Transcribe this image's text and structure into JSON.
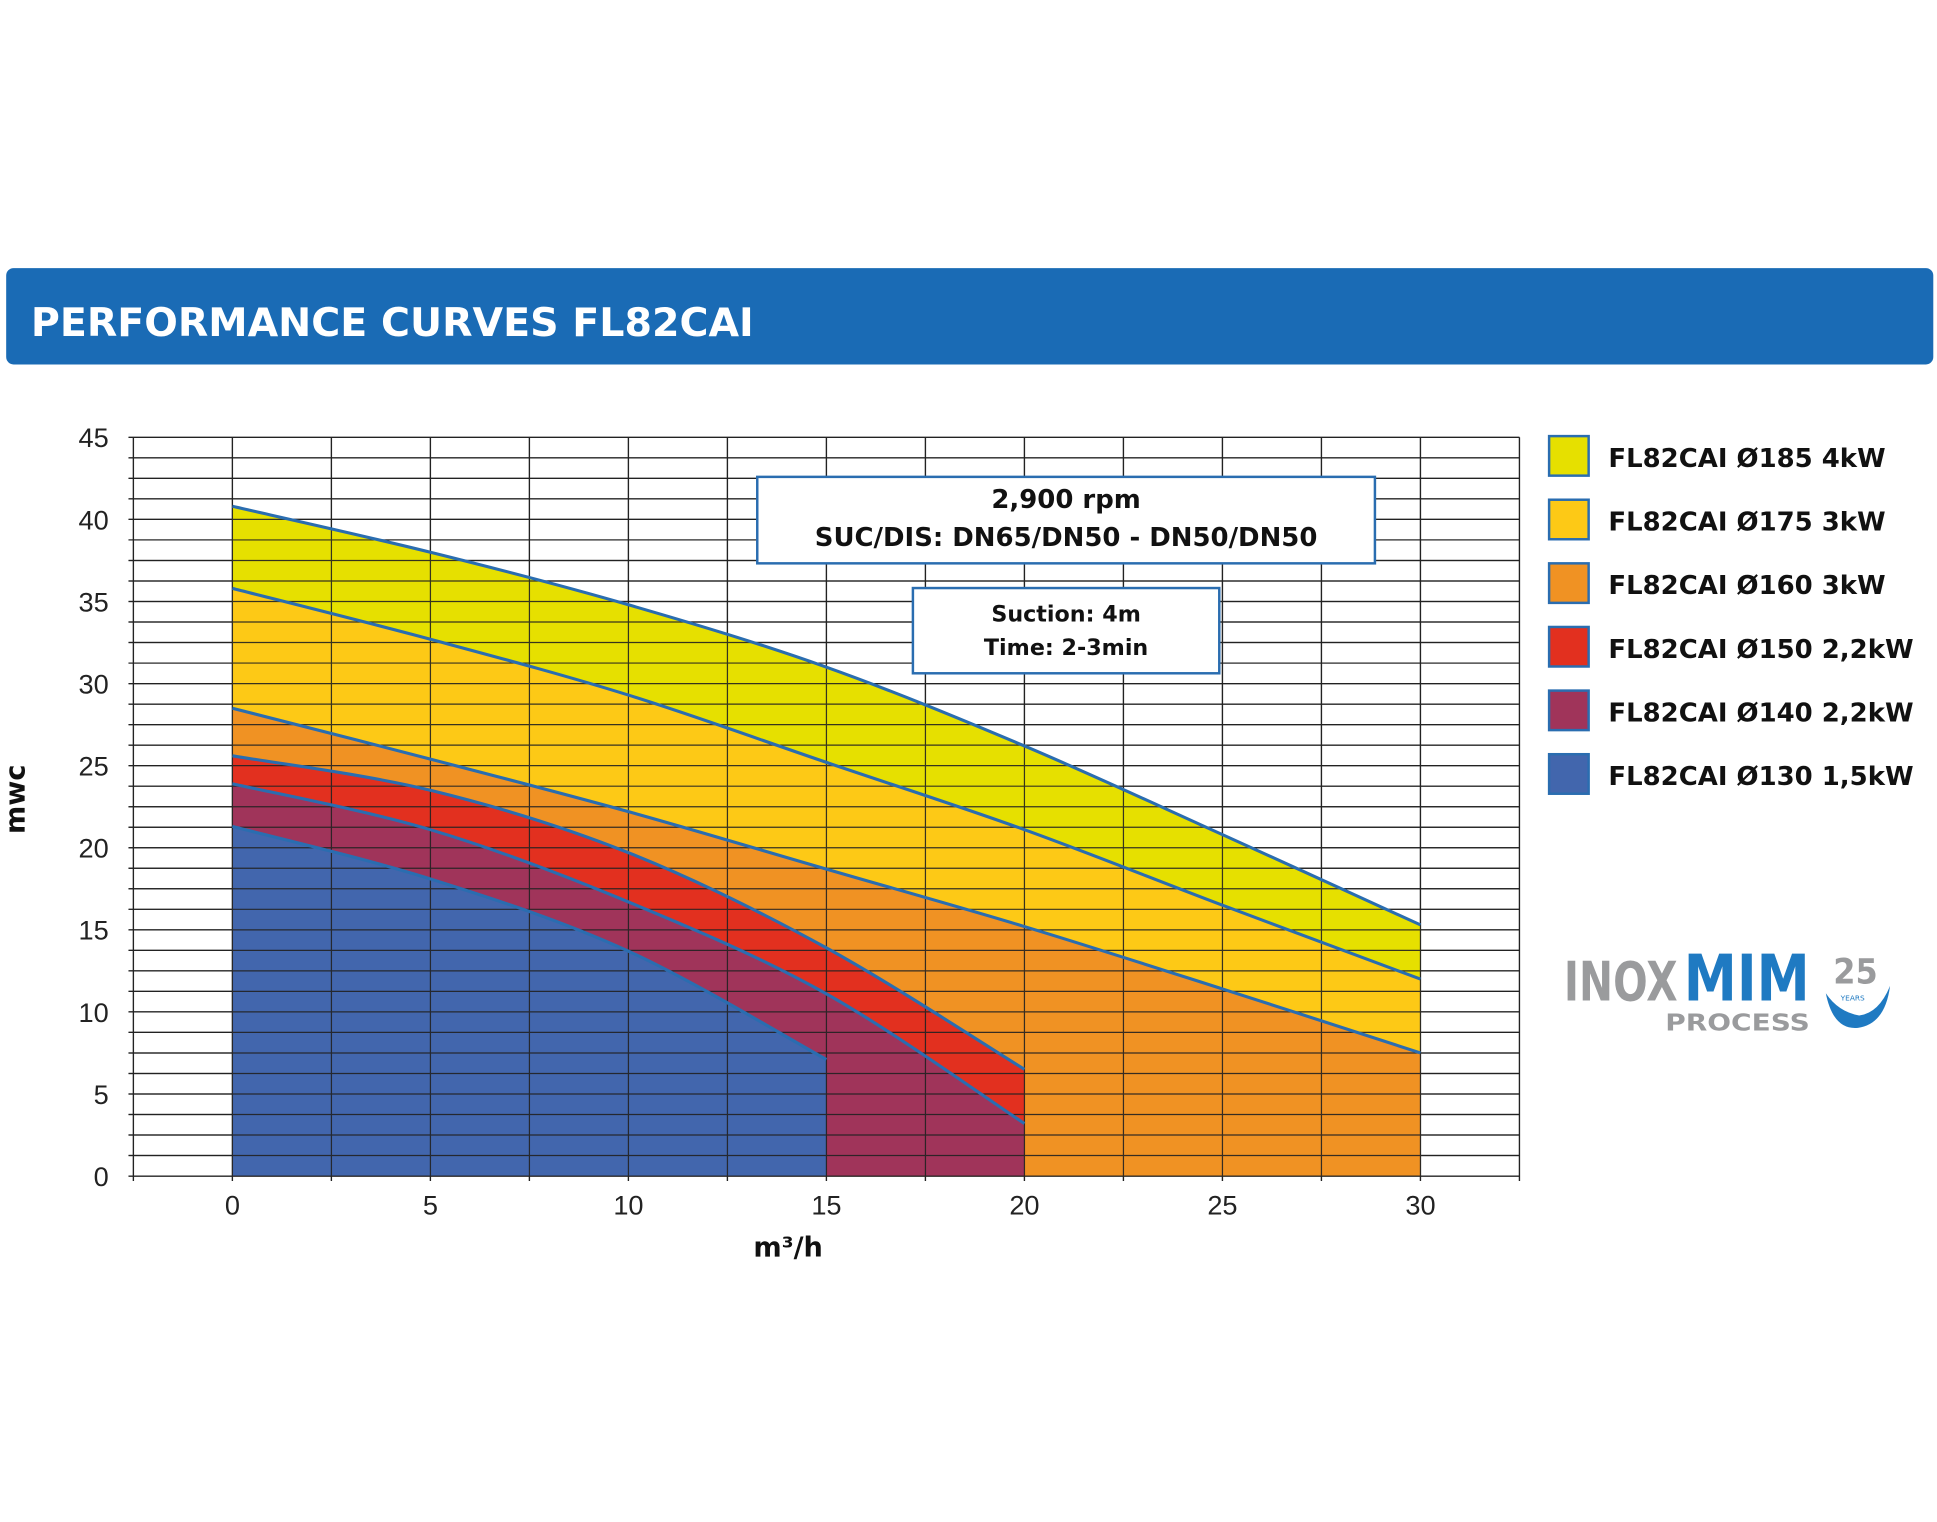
{
  "header": {
    "title": "PERFORMANCE CURVES FL82CAI",
    "color": "#1a6bb5"
  },
  "annotations": {
    "speed": "2,900 rpm",
    "connections": "SUC/DIS: DN65/DN50 - DN50/DN50",
    "suction": "Suction: 4m",
    "time": "Time: 2-3min"
  },
  "logo": {
    "brand_gray": "INOX",
    "brand_blue": "MIM",
    "sub": "PROCESS",
    "anniversary": "25",
    "years": "YEARS"
  },
  "chart_data": {
    "type": "area",
    "title": "PERFORMANCE CURVES FL82CAI",
    "xlabel": "m³/h",
    "ylabel": "mwc",
    "xlim": [
      -2.5,
      32.5
    ],
    "ylim": [
      0,
      45
    ],
    "xticks": [
      0,
      5,
      10,
      15,
      20,
      25,
      30
    ],
    "yticks": [
      0,
      5,
      10,
      15,
      20,
      25,
      30,
      35,
      40,
      45
    ],
    "grid": true,
    "legend_position": "right",
    "series": [
      {
        "name": "FL82CAI Ø185 4kW",
        "color": "#e6e000",
        "x": [
          0,
          5,
          10,
          15,
          20,
          25,
          30
        ],
        "y": [
          40.8,
          38.0,
          34.8,
          31.0,
          26.2,
          20.8,
          15.3
        ]
      },
      {
        "name": "FL82CAI Ø175 3kW",
        "color": "#fdc916",
        "x": [
          0,
          5,
          10,
          15,
          20,
          25,
          30
        ],
        "y": [
          35.8,
          32.7,
          29.3,
          25.2,
          21.1,
          16.5,
          12.0
        ]
      },
      {
        "name": "FL82CAI Ø160 3kW",
        "color": "#f09223",
        "x": [
          0,
          5,
          10,
          15,
          20,
          25,
          30
        ],
        "y": [
          28.5,
          25.4,
          22.2,
          18.7,
          15.2,
          11.4,
          7.5
        ]
      },
      {
        "name": "FL82CAI Ø150 2,2kW",
        "color": "#e2301f",
        "x": [
          0,
          5,
          10,
          15,
          20
        ],
        "y": [
          25.6,
          23.5,
          19.7,
          13.9,
          6.5
        ]
      },
      {
        "name": "FL82CAI Ø140 2,2kW",
        "color": "#a0345a",
        "x": [
          0,
          5,
          10,
          15,
          20
        ],
        "y": [
          23.9,
          21.1,
          16.7,
          11.1,
          3.2
        ]
      },
      {
        "name": "FL82CAI Ø130 1,5kW",
        "color": "#4266ad",
        "x": [
          0,
          5,
          10,
          15
        ],
        "y": [
          21.3,
          18.1,
          13.7,
          7.1
        ]
      }
    ]
  }
}
